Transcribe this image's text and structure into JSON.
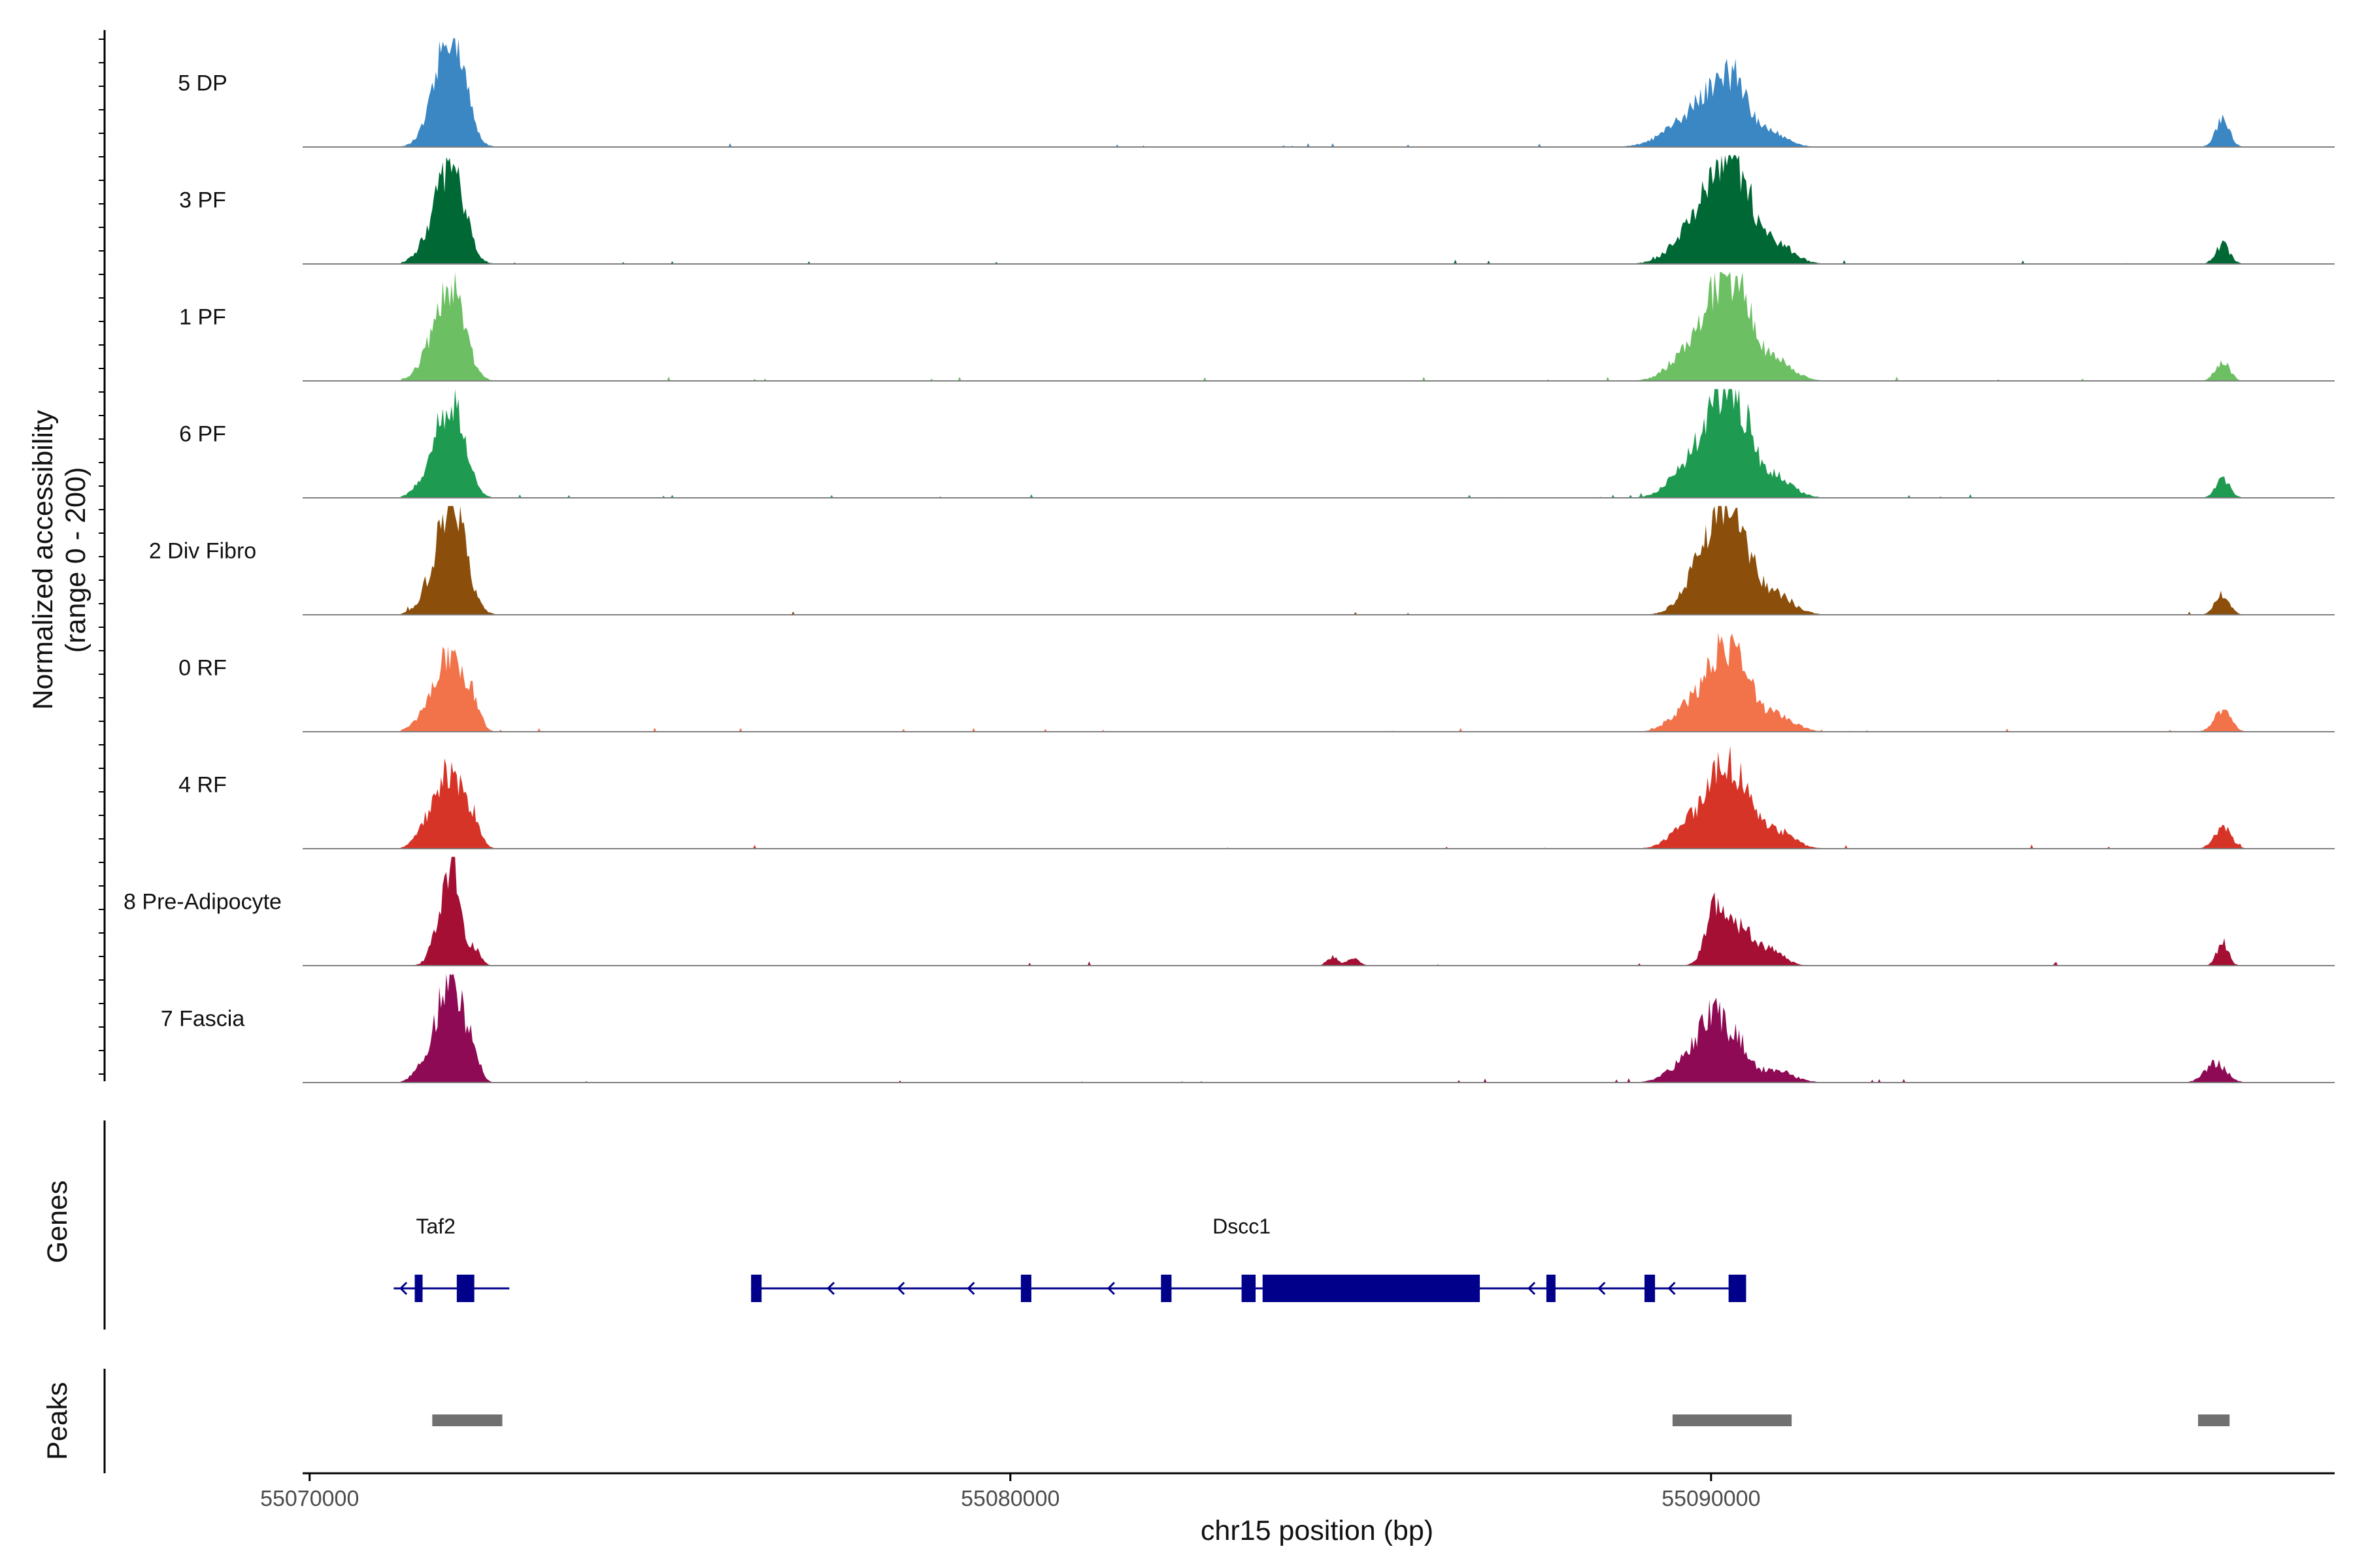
{
  "chart_data": {
    "type": "area",
    "title": "",
    "ylabel_line1": "Normalized accessibility",
    "ylabel_line2": "(range 0 - 200)",
    "y_range": [
      0,
      200
    ],
    "xlabel": "chr15 position (bp)",
    "x_range": [
      55069900,
      55098900
    ],
    "x_ticks": [
      {
        "value": 55070000,
        "label": "55070000"
      },
      {
        "value": 55080000,
        "label": "55080000"
      },
      {
        "value": 55090000,
        "label": "55090000"
      }
    ],
    "tracks": [
      {
        "name": "5 DP",
        "color": "#3a87c4",
        "shape": "dp"
      },
      {
        "name": "3 PF",
        "color": "#006834",
        "shape": "pf"
      },
      {
        "name": "1 PF",
        "color": "#6cbf63",
        "shape": "pf"
      },
      {
        "name": "6 PF",
        "color": "#1e9b50",
        "shape": "pf"
      },
      {
        "name": "2 Div Fibro",
        "color": "#8b4f0b",
        "shape": "div"
      },
      {
        "name": "0 RF",
        "color": "#f2724a",
        "shape": "rf"
      },
      {
        "name": "4 RF",
        "color": "#d73428",
        "shape": "rf"
      },
      {
        "name": "8 Pre-Adipocyte",
        "color": "#a50f33",
        "shape": "pre"
      },
      {
        "name": "7 Fascia",
        "color": "#8e0a54",
        "shape": "fascia"
      }
    ],
    "gene_panel_label": "Genes",
    "genes": [
      {
        "name": "Taf2",
        "label_pos": 55071800,
        "strand": "-",
        "color": "#00008b",
        "start": 55071200,
        "end": 55072850,
        "exons": [
          [
            55071500,
            55071560
          ],
          [
            55072100,
            55072350
          ]
        ]
      },
      {
        "name": "Dscc1",
        "label_pos": 55083300,
        "strand": "-",
        "color": "#00008b",
        "start": 55076300,
        "end": 55090500,
        "exons": [
          [
            55076300,
            55076450
          ],
          [
            55080150,
            55080300
          ],
          [
            55082150,
            55082300
          ],
          [
            55083300,
            55083500
          ],
          [
            55083600,
            55086700
          ],
          [
            55087650,
            55087780
          ],
          [
            55089050,
            55089200
          ],
          [
            55090250,
            55090500
          ]
        ]
      }
    ],
    "peak_panel_label": "Peaks",
    "peaks": [
      [
        55071750,
        55072750
      ],
      [
        55089450,
        55091150
      ],
      [
        55096950,
        55097400
      ]
    ],
    "peak_color": "#707070"
  }
}
